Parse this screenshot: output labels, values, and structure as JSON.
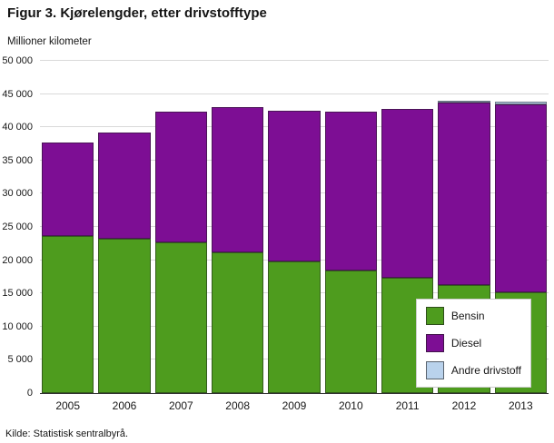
{
  "chart_data": {
    "type": "bar",
    "stacked": true,
    "title": "Figur 3. Kjørelengder, etter drivstofftype",
    "ylabel": "Millioner kilometer",
    "source": "Kilde: Statistisk sentralbyrå.",
    "categories": [
      "2005",
      "2006",
      "2007",
      "2008",
      "2009",
      "2010",
      "2011",
      "2012",
      "2013"
    ],
    "series": [
      {
        "name": "Bensin",
        "color": "#4e9c1e",
        "values": [
          23700,
          23200,
          22700,
          21200,
          19800,
          18500,
          17300,
          16200,
          15200
        ]
      },
      {
        "name": "Diesel",
        "color": "#7d0e94",
        "values": [
          14000,
          16000,
          19600,
          21800,
          22700,
          23900,
          25500,
          27500,
          28200
        ]
      },
      {
        "name": "Andre drivstoff",
        "color": "#b9d2ec",
        "values": [
          0,
          0,
          0,
          0,
          0,
          0,
          0,
          200,
          400
        ]
      }
    ],
    "ylim": [
      0,
      50000
    ],
    "ytick_step": 5000,
    "ytick_labels": [
      "0",
      "5 000",
      "10 000",
      "15 000",
      "20 000",
      "25 000",
      "30 000",
      "35 000",
      "40 000",
      "45 000",
      "50 000"
    ],
    "grid": true,
    "legend_position": "bottom-right"
  }
}
